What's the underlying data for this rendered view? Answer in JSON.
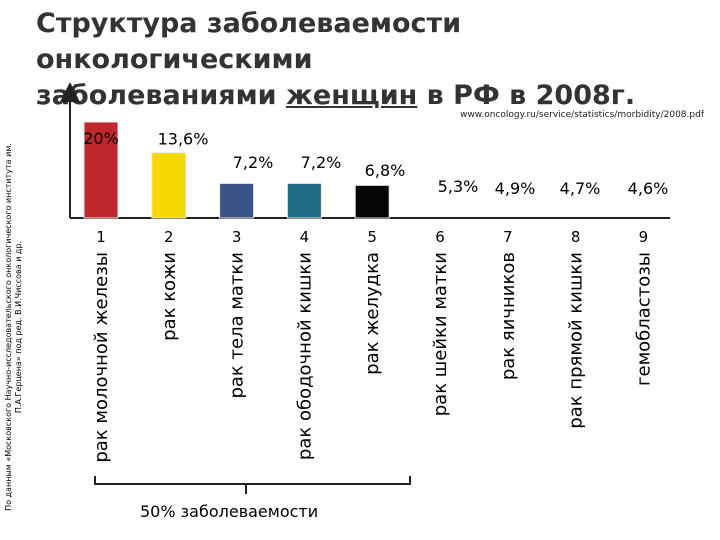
{
  "title_line1": "Структура заболеваемости онкологическими",
  "title_line2_pre": "заболеваниями ",
  "title_line2_u": "женщин",
  "title_line2_post": " в РФ в 2008г.",
  "url": "www.oncology.ru/service/statistics/morbidity/2008.pdf",
  "source_note": "По данным «Московского Научно-исследовательского онкологического института им. П.А.Герцена» под ред. В.И.Чиссова и др.",
  "brace_label": "50% заболеваемости",
  "colors": {
    "bar1": "#c0272d",
    "bar2": "#f5d800",
    "bar3": "#3a5387",
    "bar4": "#1f6a85",
    "bar5": "#050505"
  },
  "chart_data": {
    "type": "bar",
    "title": "Структура заболеваемости онкологическими заболеваниями женщин в РФ в 2008г.",
    "categories": [
      "рак молочной железы",
      "рак кожи",
      "рак тела матки",
      "рак ободочной кишки",
      "рак желудка",
      "рак шейки матки",
      "рак яичников",
      "рак прямой кишки",
      "гемобластозы"
    ],
    "ranks": [
      "1",
      "2",
      "3",
      "4",
      "5",
      "6",
      "7",
      "8",
      "9"
    ],
    "values": [
      20,
      13.6,
      7.2,
      7.2,
      6.8,
      5.3,
      4.9,
      4.7,
      4.6
    ],
    "value_labels": [
      "20%",
      "13,6%",
      "7,2%",
      "7,2%",
      "6,8%",
      "5,3%",
      "4,9%",
      "4,7%",
      "4,6%"
    ],
    "unit": "%",
    "ylim": [
      0,
      20
    ],
    "grid": false,
    "bar_colors": [
      "#c0272d",
      "#f5d800",
      "#3a5387",
      "#1f6a85",
      "#050505",
      null,
      null,
      null,
      null
    ]
  }
}
